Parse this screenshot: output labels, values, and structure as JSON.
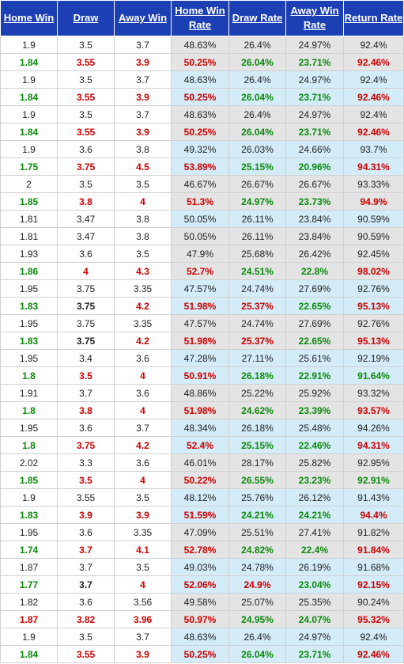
{
  "headers": [
    "Home Win",
    "Draw",
    "Away Win",
    "Home Win Rate",
    "Draw Rate",
    "Away Win Rate",
    "Return Rate"
  ],
  "rows": [
    {
      "hw": "1.9",
      "d": "3.5",
      "aw": "3.7",
      "hwr": "48.63%",
      "dr": "26.4%",
      "awr": "24.97%",
      "rr": "92.4%",
      "c": [
        "k",
        "k",
        "k",
        "k",
        "k",
        "k",
        "k"
      ]
    },
    {
      "hw": "1.84",
      "d": "3.55",
      "aw": "3.9",
      "hwr": "50.25%",
      "dr": "26.04%",
      "awr": "23.71%",
      "rr": "92.46%",
      "c": [
        "g",
        "rd",
        "rd",
        "rd",
        "g",
        "g",
        "rd"
      ]
    },
    {
      "hw": "1.9",
      "d": "3.5",
      "aw": "3.7",
      "hwr": "48.63%",
      "dr": "26.4%",
      "awr": "24.97%",
      "rr": "92.4%",
      "c": [
        "k",
        "k",
        "k",
        "k",
        "k",
        "k",
        "k"
      ]
    },
    {
      "hw": "1.84",
      "d": "3.55",
      "aw": "3.9",
      "hwr": "50.25%",
      "dr": "26.04%",
      "awr": "23.71%",
      "rr": "92.46%",
      "c": [
        "g",
        "rd",
        "rd",
        "rd",
        "g",
        "g",
        "rd"
      ]
    },
    {
      "hw": "1.9",
      "d": "3.5",
      "aw": "3.7",
      "hwr": "48.63%",
      "dr": "26.4%",
      "awr": "24.97%",
      "rr": "92.4%",
      "c": [
        "k",
        "k",
        "k",
        "k",
        "k",
        "k",
        "k"
      ]
    },
    {
      "hw": "1.84",
      "d": "3.55",
      "aw": "3.9",
      "hwr": "50.25%",
      "dr": "26.04%",
      "awr": "23.71%",
      "rr": "92.46%",
      "c": [
        "g",
        "rd",
        "rd",
        "rd",
        "g",
        "g",
        "rd"
      ]
    },
    {
      "hw": "1.9",
      "d": "3.6",
      "aw": "3.8",
      "hwr": "49.32%",
      "dr": "26.03%",
      "awr": "24.66%",
      "rr": "93.7%",
      "c": [
        "k",
        "k",
        "k",
        "k",
        "k",
        "k",
        "k"
      ]
    },
    {
      "hw": "1.75",
      "d": "3.75",
      "aw": "4.5",
      "hwr": "53.89%",
      "dr": "25.15%",
      "awr": "20.96%",
      "rr": "94.31%",
      "c": [
        "g",
        "rd",
        "rd",
        "rd",
        "g",
        "g",
        "rd"
      ]
    },
    {
      "hw": "2",
      "d": "3.5",
      "aw": "3.5",
      "hwr": "46.67%",
      "dr": "26.67%",
      "awr": "26.67%",
      "rr": "93.33%",
      "c": [
        "k",
        "k",
        "k",
        "k",
        "k",
        "k",
        "k"
      ]
    },
    {
      "hw": "1.85",
      "d": "3.8",
      "aw": "4",
      "hwr": "51.3%",
      "dr": "24.97%",
      "awr": "23.73%",
      "rr": "94.9%",
      "c": [
        "g",
        "rd",
        "rd",
        "rd",
        "g",
        "g",
        "rd"
      ]
    },
    {
      "hw": "1.81",
      "d": "3.47",
      "aw": "3.8",
      "hwr": "50.05%",
      "dr": "26.11%",
      "awr": "23.84%",
      "rr": "90.59%",
      "c": [
        "k",
        "k",
        "k",
        "k",
        "k",
        "k",
        "k"
      ]
    },
    {
      "hw": "1.81",
      "d": "3.47",
      "aw": "3.8",
      "hwr": "50.05%",
      "dr": "26.11%",
      "awr": "23.84%",
      "rr": "90.59%",
      "c": [
        "k",
        "k",
        "k",
        "k",
        "k",
        "k",
        "k"
      ],
      "plain": true
    },
    {
      "hw": "1.93",
      "d": "3.6",
      "aw": "3.5",
      "hwr": "47.9%",
      "dr": "25.68%",
      "awr": "26.42%",
      "rr": "92.45%",
      "c": [
        "k",
        "k",
        "k",
        "k",
        "k",
        "k",
        "k"
      ]
    },
    {
      "hw": "1.86",
      "d": "4",
      "aw": "4.3",
      "hwr": "52.7%",
      "dr": "24.51%",
      "awr": "22.8%",
      "rr": "98.02%",
      "c": [
        "g",
        "rd",
        "rd",
        "rd",
        "g",
        "g",
        "rd"
      ]
    },
    {
      "hw": "1.95",
      "d": "3.75",
      "aw": "3.35",
      "hwr": "47.57%",
      "dr": "24.74%",
      "awr": "27.69%",
      "rr": "92.76%",
      "c": [
        "k",
        "k",
        "k",
        "k",
        "k",
        "k",
        "k"
      ]
    },
    {
      "hw": "1.83",
      "d": "3.75",
      "aw": "4.2",
      "hwr": "51.98%",
      "dr": "25.37%",
      "awr": "22.65%",
      "rr": "95.13%",
      "c": [
        "g",
        "k",
        "rd",
        "rd",
        "rd",
        "g",
        "rd"
      ]
    },
    {
      "hw": "1.95",
      "d": "3.75",
      "aw": "3.35",
      "hwr": "47.57%",
      "dr": "24.74%",
      "awr": "27.69%",
      "rr": "92.76%",
      "c": [
        "k",
        "k",
        "k",
        "k",
        "k",
        "k",
        "k"
      ]
    },
    {
      "hw": "1.83",
      "d": "3.75",
      "aw": "4.2",
      "hwr": "51.98%",
      "dr": "25.37%",
      "awr": "22.65%",
      "rr": "95.13%",
      "c": [
        "g",
        "k",
        "rd",
        "rd",
        "rd",
        "g",
        "rd"
      ]
    },
    {
      "hw": "1.95",
      "d": "3.4",
      "aw": "3.6",
      "hwr": "47.28%",
      "dr": "27.11%",
      "awr": "25.61%",
      "rr": "92.19%",
      "c": [
        "k",
        "k",
        "k",
        "k",
        "k",
        "k",
        "k"
      ]
    },
    {
      "hw": "1.8",
      "d": "3.5",
      "aw": "4",
      "hwr": "50.91%",
      "dr": "26.18%",
      "awr": "22.91%",
      "rr": "91.64%",
      "c": [
        "g",
        "rd",
        "rd",
        "rd",
        "g",
        "g",
        "g"
      ]
    },
    {
      "hw": "1.91",
      "d": "3.7",
      "aw": "3.6",
      "hwr": "48.86%",
      "dr": "25.22%",
      "awr": "25.92%",
      "rr": "93.32%",
      "c": [
        "k",
        "k",
        "k",
        "k",
        "k",
        "k",
        "k"
      ]
    },
    {
      "hw": "1.8",
      "d": "3.8",
      "aw": "4",
      "hwr": "51.98%",
      "dr": "24.62%",
      "awr": "23.39%",
      "rr": "93.57%",
      "c": [
        "g",
        "rd",
        "rd",
        "rd",
        "g",
        "g",
        "rd"
      ]
    },
    {
      "hw": "1.95",
      "d": "3.6",
      "aw": "3.7",
      "hwr": "48.34%",
      "dr": "26.18%",
      "awr": "25.48%",
      "rr": "94.26%",
      "c": [
        "k",
        "k",
        "k",
        "k",
        "k",
        "k",
        "k"
      ]
    },
    {
      "hw": "1.8",
      "d": "3.75",
      "aw": "4.2",
      "hwr": "52.4%",
      "dr": "25.15%",
      "awr": "22.46%",
      "rr": "94.31%",
      "c": [
        "g",
        "rd",
        "rd",
        "rd",
        "g",
        "g",
        "rd"
      ]
    },
    {
      "hw": "2.02",
      "d": "3.3",
      "aw": "3.6",
      "hwr": "46.01%",
      "dr": "28.17%",
      "awr": "25.82%",
      "rr": "92.95%",
      "c": [
        "k",
        "k",
        "k",
        "k",
        "k",
        "k",
        "k"
      ]
    },
    {
      "hw": "1.85",
      "d": "3.5",
      "aw": "4",
      "hwr": "50.22%",
      "dr": "26.55%",
      "awr": "23.23%",
      "rr": "92.91%",
      "c": [
        "g",
        "rd",
        "rd",
        "rd",
        "g",
        "g",
        "g"
      ]
    },
    {
      "hw": "1.9",
      "d": "3.55",
      "aw": "3.5",
      "hwr": "48.12%",
      "dr": "25.76%",
      "awr": "26.12%",
      "rr": "91.43%",
      "c": [
        "k",
        "k",
        "k",
        "k",
        "k",
        "k",
        "k"
      ]
    },
    {
      "hw": "1.83",
      "d": "3.9",
      "aw": "3.9",
      "hwr": "51.59%",
      "dr": "24.21%",
      "awr": "24.21%",
      "rr": "94.4%",
      "c": [
        "g",
        "rd",
        "rd",
        "rd",
        "g",
        "g",
        "rd"
      ]
    },
    {
      "hw": "1.95",
      "d": "3.6",
      "aw": "3.35",
      "hwr": "47.09%",
      "dr": "25.51%",
      "awr": "27.41%",
      "rr": "91.82%",
      "c": [
        "k",
        "k",
        "k",
        "k",
        "k",
        "k",
        "k"
      ]
    },
    {
      "hw": "1.74",
      "d": "3.7",
      "aw": "4.1",
      "hwr": "52.78%",
      "dr": "24.82%",
      "awr": "22.4%",
      "rr": "91.84%",
      "c": [
        "g",
        "rd",
        "rd",
        "rd",
        "g",
        "g",
        "rd"
      ]
    },
    {
      "hw": "1.87",
      "d": "3.7",
      "aw": "3.5",
      "hwr": "49.03%",
      "dr": "24.78%",
      "awr": "26.19%",
      "rr": "91.68%",
      "c": [
        "k",
        "k",
        "k",
        "k",
        "k",
        "k",
        "k"
      ]
    },
    {
      "hw": "1.77",
      "d": "3.7",
      "aw": "4",
      "hwr": "52.06%",
      "dr": "24.9%",
      "awr": "23.04%",
      "rr": "92.15%",
      "c": [
        "g",
        "k",
        "rd",
        "rd",
        "rd",
        "g",
        "rd"
      ]
    },
    {
      "hw": "1.82",
      "d": "3.6",
      "aw": "3.56",
      "hwr": "49.58%",
      "dr": "25.07%",
      "awr": "25.35%",
      "rr": "90.24%",
      "c": [
        "k",
        "k",
        "k",
        "k",
        "k",
        "k",
        "k"
      ]
    },
    {
      "hw": "1.87",
      "d": "3.82",
      "aw": "3.96",
      "hwr": "50.97%",
      "dr": "24.95%",
      "awr": "24.07%",
      "rr": "95.32%",
      "c": [
        "rd",
        "rd",
        "rd",
        "rd",
        "g",
        "g",
        "rd"
      ]
    },
    {
      "hw": "1.9",
      "d": "3.5",
      "aw": "3.7",
      "hwr": "48.63%",
      "dr": "26.4%",
      "awr": "24.97%",
      "rr": "92.4%",
      "c": [
        "k",
        "k",
        "k",
        "k",
        "k",
        "k",
        "k"
      ]
    },
    {
      "hw": "1.84",
      "d": "3.55",
      "aw": "3.9",
      "hwr": "50.25%",
      "dr": "26.04%",
      "awr": "23.71%",
      "rr": "92.46%",
      "c": [
        "g",
        "rd",
        "rd",
        "rd",
        "g",
        "g",
        "rd"
      ]
    }
  ]
}
